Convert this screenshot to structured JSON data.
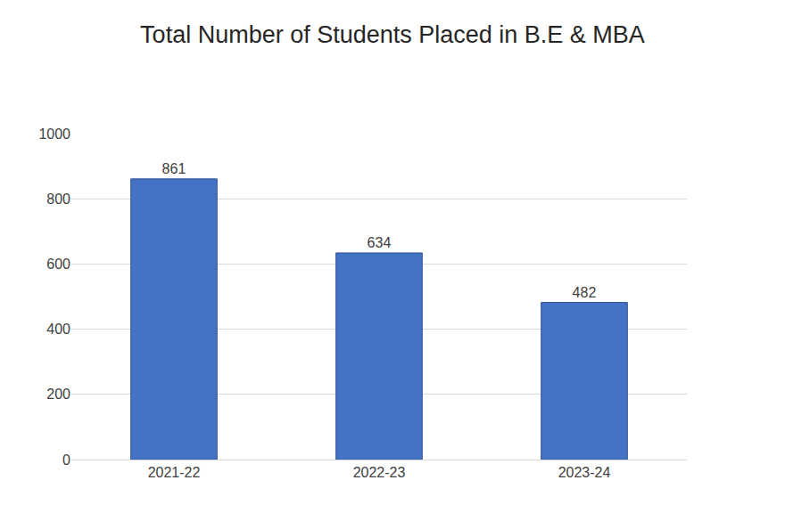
{
  "chart_data": {
    "type": "bar",
    "title": "Total Number of Students Placed in B.E & MBA",
    "categories": [
      "2021-22",
      "2022-23",
      "2023-24"
    ],
    "values": [
      861,
      634,
      482
    ],
    "color": "#4472c4",
    "ylim": [
      0,
      1000
    ],
    "yticks": [
      0,
      200,
      400,
      600,
      800,
      1000
    ],
    "grid": true,
    "data_labels": true
  }
}
